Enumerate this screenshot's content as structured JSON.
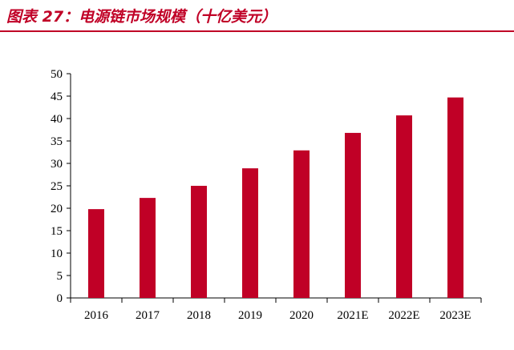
{
  "header": {
    "title": "图表 27：电源链市场规模（十亿美元）"
  },
  "chart_data": {
    "type": "bar",
    "title": "图表 27：电源链市场规模（十亿美元）",
    "xlabel": "",
    "ylabel": "",
    "categories": [
      "2016",
      "2017",
      "2018",
      "2019",
      "2020",
      "2021E",
      "2022E",
      "2023E"
    ],
    "values": [
      19.8,
      22.3,
      25.0,
      28.9,
      32.9,
      36.8,
      40.7,
      44.7
    ],
    "ylim": [
      0,
      50
    ],
    "yticks": [
      "0",
      "5",
      "10",
      "15",
      "20",
      "25",
      "30",
      "35",
      "40",
      "45",
      "50"
    ],
    "grid": false,
    "legend": "none",
    "bar_color": "#c00026",
    "accent_color": "#c00026"
  }
}
